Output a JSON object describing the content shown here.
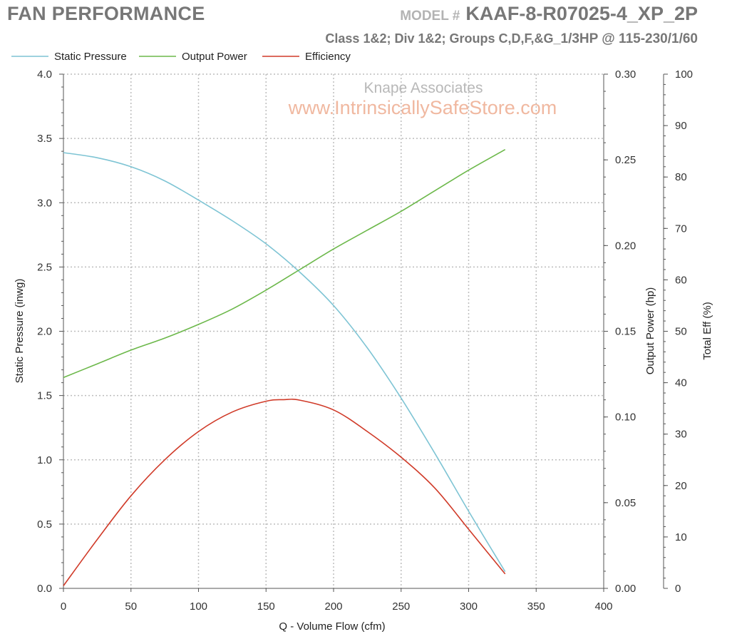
{
  "header": {
    "title": "FAN PERFORMANCE",
    "model_label": "MODEL #",
    "model_value": "KAAF-8-R07025-4_XP_2P",
    "subtitle_prefix": "Class 1&2; Div 1&2; Groups C,D,F,&G_",
    "subtitle_hp": "1/3HP  @  115-230/1/60"
  },
  "watermark": {
    "line1": "Knape Associates",
    "line2": "www.IntrinsicallySafeStore.com"
  },
  "colors": {
    "static_pressure": "#7ec4d4",
    "output_power": "#6cb84a",
    "efficiency": "#d03a28",
    "grid": "#bdbdbd",
    "watermark1": "#b8b8b8",
    "watermark2": "#f0b8a0"
  },
  "chart_data": {
    "type": "line",
    "grid": true,
    "legend_position": "top-left",
    "xlabel": "Q - Volume Flow (cfm)",
    "xlim": [
      0,
      400
    ],
    "xticks": [
      "0",
      "50",
      "100",
      "150",
      "200",
      "250",
      "300",
      "350",
      "400"
    ],
    "axes": {
      "left": {
        "label": "Static Pressure (inwg)",
        "lim": [
          0,
          4
        ],
        "ticks": [
          "0.0",
          "0.5",
          "1.0",
          "1.5",
          "2.0",
          "2.5",
          "3.0",
          "3.5",
          "4.0"
        ]
      },
      "right1": {
        "label": "Output Power (hp)",
        "lim": [
          0,
          0.3
        ],
        "ticks": [
          "0.00",
          "0.05",
          "0.10",
          "0.15",
          "0.20",
          "0.25",
          "0.30"
        ]
      },
      "right2": {
        "label": "Total Eff (%)",
        "lim": [
          0,
          100
        ],
        "ticks": [
          "0",
          "10",
          "20",
          "30",
          "40",
          "50",
          "60",
          "70",
          "80",
          "90",
          "100"
        ]
      }
    },
    "series": [
      {
        "name": "Static Pressure",
        "axis": "left",
        "x": [
          0,
          25,
          50,
          75,
          100,
          125,
          150,
          175,
          200,
          225,
          250,
          275,
          300,
          327
        ],
        "y": [
          3.39,
          3.35,
          3.28,
          3.17,
          3.02,
          2.86,
          2.68,
          2.46,
          2.2,
          1.87,
          1.48,
          1.05,
          0.6,
          0.13
        ]
      },
      {
        "name": "Output Power",
        "axis": "right1",
        "x": [
          0,
          25,
          50,
          75,
          100,
          125,
          150,
          175,
          200,
          225,
          250,
          275,
          300,
          327
        ],
        "y": [
          0.123,
          0.131,
          0.139,
          0.146,
          0.154,
          0.163,
          0.174,
          0.186,
          0.198,
          0.209,
          0.22,
          0.232,
          0.244,
          0.256
        ]
      },
      {
        "name": "Efficiency",
        "axis": "right2",
        "x": [
          0,
          25,
          50,
          75,
          100,
          125,
          150,
          163,
          175,
          200,
          225,
          250,
          275,
          300,
          327
        ],
        "y": [
          0.5,
          9.5,
          18,
          25,
          30.5,
          34.3,
          36.4,
          36.7,
          36.6,
          34.7,
          30.5,
          25.5,
          19.5,
          11.5,
          2.8
        ]
      }
    ]
  }
}
